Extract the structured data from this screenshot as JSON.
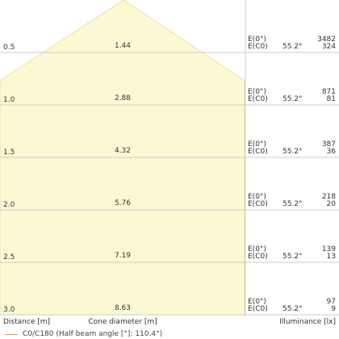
{
  "chart_data": {
    "type": "cone-diagram",
    "half_beam_angle_deg": 110.4,
    "rows": [
      {
        "distance": "0.5",
        "diameter": "1.44",
        "e0_label": "E(0°)",
        "ec_label": "E(C0)",
        "angle": "55.2°",
        "e0": "3482",
        "ec": "324"
      },
      {
        "distance": "1.0",
        "diameter": "2.88",
        "e0_label": "E(0°)",
        "ec_label": "E(C0)",
        "angle": "55.2°",
        "e0": "871",
        "ec": "81"
      },
      {
        "distance": "1.5",
        "diameter": "4.32",
        "e0_label": "E(0°)",
        "ec_label": "E(C0)",
        "angle": "55.2°",
        "e0": "387",
        "ec": "36"
      },
      {
        "distance": "2.0",
        "diameter": "5.76",
        "e0_label": "E(0°)",
        "ec_label": "E(C0)",
        "angle": "55.2°",
        "e0": "218",
        "ec": "20"
      },
      {
        "distance": "2.5",
        "diameter": "7.19",
        "e0_label": "E(0°)",
        "ec_label": "E(C0)",
        "angle": "55.2°",
        "e0": "139",
        "ec": "13"
      },
      {
        "distance": "3.0",
        "diameter": "8.63",
        "e0_label": "E(0°)",
        "ec_label": "E(C0)",
        "angle": "55.2°",
        "e0": "97",
        "ec": "9"
      }
    ],
    "xlabel_left": "Distance [m]",
    "xlabel_center": "Cone diameter [m]",
    "xlabel_right": "Illuminance [lx]",
    "legend": "C0/C180 (Half beam angle [°]: 110.4°)",
    "colors": {
      "cone_fill": "#fdf8d4",
      "cone_edge": "#ecdf9c",
      "grid": "#cccccc",
      "legend_line": "#e8a040"
    }
  }
}
